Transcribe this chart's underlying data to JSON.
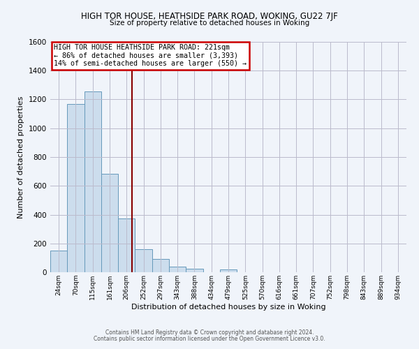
{
  "title": "HIGH TOR HOUSE, HEATHSIDE PARK ROAD, WOKING, GU22 7JF",
  "subtitle": "Size of property relative to detached houses in Woking",
  "xlabel": "Distribution of detached houses by size in Woking",
  "ylabel": "Number of detached properties",
  "footer_line1": "Contains HM Land Registry data © Crown copyright and database right 2024.",
  "footer_line2": "Contains public sector information licensed under the Open Government Licence v3.0.",
  "bin_labels": [
    "24sqm",
    "70sqm",
    "115sqm",
    "161sqm",
    "206sqm",
    "252sqm",
    "297sqm",
    "343sqm",
    "388sqm",
    "434sqm",
    "479sqm",
    "525sqm",
    "570sqm",
    "616sqm",
    "661sqm",
    "707sqm",
    "752sqm",
    "798sqm",
    "843sqm",
    "889sqm",
    "934sqm"
  ],
  "bar_heights": [
    150,
    1170,
    1255,
    685,
    375,
    160,
    90,
    38,
    22,
    0,
    18,
    0,
    0,
    0,
    0,
    0,
    0,
    0,
    0,
    0,
    0
  ],
  "bar_color": "#ccdded",
  "bar_edge_color": "#6699bb",
  "vline_color": "#880000",
  "annotation_text": "HIGH TOR HOUSE HEATHSIDE PARK ROAD: 221sqm\n← 86% of detached houses are smaller (3,393)\n14% of semi-detached houses are larger (550) →",
  "annotation_box_color": "#ffffff",
  "annotation_box_edge_color": "#cc0000",
  "ylim": [
    0,
    1600
  ],
  "yticks": [
    0,
    200,
    400,
    600,
    800,
    1000,
    1200,
    1400,
    1600
  ],
  "bg_color": "#f0f4fa",
  "grid_color": "#bbbbcc"
}
